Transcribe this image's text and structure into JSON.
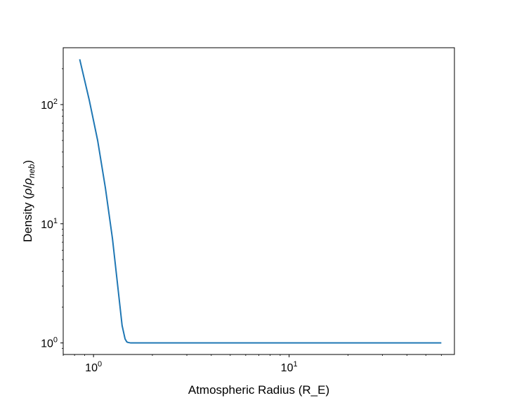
{
  "chart_data": {
    "type": "line",
    "title": "",
    "xlabel": "Atmospheric Radius (R_E)",
    "ylabel": "Density (ρ/ρ_neb)",
    "xscale": "log",
    "yscale": "log",
    "xlim": [
      0.7,
      70
    ],
    "ylim": [
      0.8,
      300
    ],
    "grid": false,
    "x_ticks": [
      {
        "value": 1,
        "base": "10",
        "exp": "0"
      },
      {
        "value": 10,
        "base": "10",
        "exp": "1"
      }
    ],
    "y_ticks": [
      {
        "value": 1,
        "base": "10",
        "exp": "0"
      },
      {
        "value": 10,
        "base": "10",
        "exp": "1"
      },
      {
        "value": 100,
        "base": "10",
        "exp": "2"
      }
    ],
    "series": [
      {
        "color": "#1f77b4",
        "x": [
          0.85,
          0.95,
          1.05,
          1.15,
          1.25,
          1.33,
          1.4,
          1.45,
          1.48,
          1.5,
          1.55,
          3,
          10,
          30,
          60
        ],
        "y": [
          240,
          110,
          50,
          20,
          7.5,
          3.0,
          1.4,
          1.08,
          1.02,
          1.01,
          1.0,
          1.0,
          1.0,
          1.0,
          1.0
        ]
      }
    ]
  }
}
